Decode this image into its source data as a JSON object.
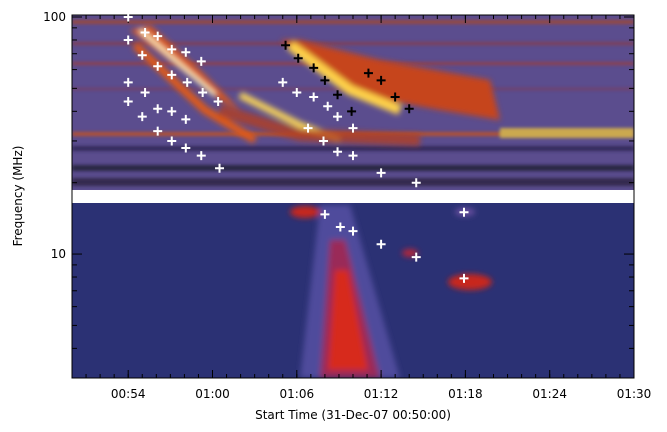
{
  "chart_data": {
    "type": "scatter",
    "xlabel": "Start Time (31-Dec-07 00:50:00)",
    "ylabel": "Frequency (MHz)",
    "xlim": [
      0,
      40
    ],
    "xticks": [
      {
        "value": 4,
        "label": "00:54"
      },
      {
        "value": 10,
        "label": "01:00"
      },
      {
        "value": 16,
        "label": "01:06"
      },
      {
        "value": 22,
        "label": "01:12"
      },
      {
        "value": 28,
        "label": "01:18"
      },
      {
        "value": 34,
        "label": "01:24"
      },
      {
        "value": 40,
        "label": "01:30"
      }
    ],
    "ylim": [
      3,
      100
    ],
    "yticks": [
      10,
      100
    ],
    "log_y": true,
    "series": [
      {
        "color": "#ffffff",
        "x": [
          4.0,
          5.2,
          6.1,
          7.1,
          8.1,
          9.2,
          4.0,
          5.0,
          6.1,
          7.1,
          8.2,
          9.3,
          10.4,
          4.0,
          5.2,
          6.1,
          7.1,
          8.1,
          4.0,
          5.0,
          6.1,
          7.1,
          8.1,
          9.2,
          10.5,
          15.0,
          16.0,
          17.2,
          18.2,
          18.9,
          20.0,
          16.8,
          17.9,
          18.9,
          20.0,
          22.0,
          24.5,
          18.0,
          19.1,
          20.0,
          22.0,
          24.5,
          27.9,
          27.9
        ],
        "values": [
          100,
          86,
          83,
          73,
          71,
          65,
          80,
          69,
          62,
          57,
          53,
          48,
          44,
          53,
          48,
          41,
          40,
          37,
          44,
          38,
          33,
          30,
          28,
          26,
          23,
          53,
          48,
          46,
          42,
          38,
          34,
          34,
          30,
          27,
          26,
          22,
          20,
          14.7,
          13,
          12.5,
          11,
          9.7,
          7.9,
          15
        ]
      },
      {
        "color": "#000000",
        "x": [
          15.2,
          16.1,
          17.2,
          18.0,
          18.9,
          19.9,
          21.1,
          22.0,
          23.0,
          24.0
        ],
        "values": [
          76,
          67,
          61,
          54,
          47,
          40,
          58,
          54,
          46,
          41
        ]
      }
    ]
  }
}
